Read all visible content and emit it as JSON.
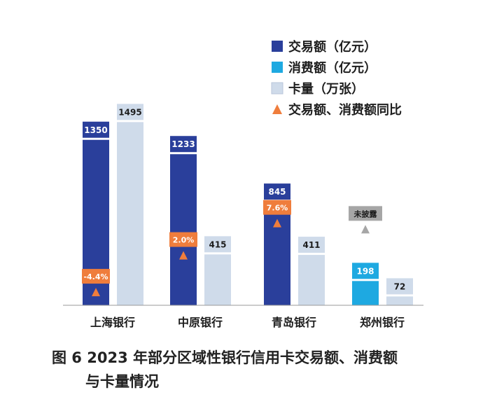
{
  "chart_data": {
    "type": "bar",
    "categories": [
      "上海银行",
      "中原银行",
      "青岛银行",
      "郑州银行"
    ],
    "series": [
      {
        "name": "交易额（亿元）",
        "color": "#2a3f9b",
        "values": [
          1350,
          1233,
          845,
          null
        ]
      },
      {
        "name": "消费额（亿元）",
        "color": "#1ea9e1",
        "values": [
          null,
          null,
          null,
          198
        ]
      },
      {
        "name": "卡量（万张）",
        "color": "#cfdbea",
        "values": [
          1495,
          415,
          411,
          72
        ]
      }
    ],
    "yoy": {
      "name": "交易额、消费额同比",
      "color": "#ef7d3c",
      "labels": [
        "-4.4%",
        "2.0%",
        "7.6%",
        "未披露"
      ],
      "values": [
        -4.4,
        2.0,
        7.6,
        null
      ],
      "undisclosed_color": "#a6a6a6"
    },
    "ylim": [
      0,
      1600
    ],
    "grid": false,
    "legend_position": "top-right"
  },
  "caption": {
    "line1": "图 6  2023 年部分区域性银行信用卡交易额、消费额",
    "line2": "与卡量情况"
  }
}
